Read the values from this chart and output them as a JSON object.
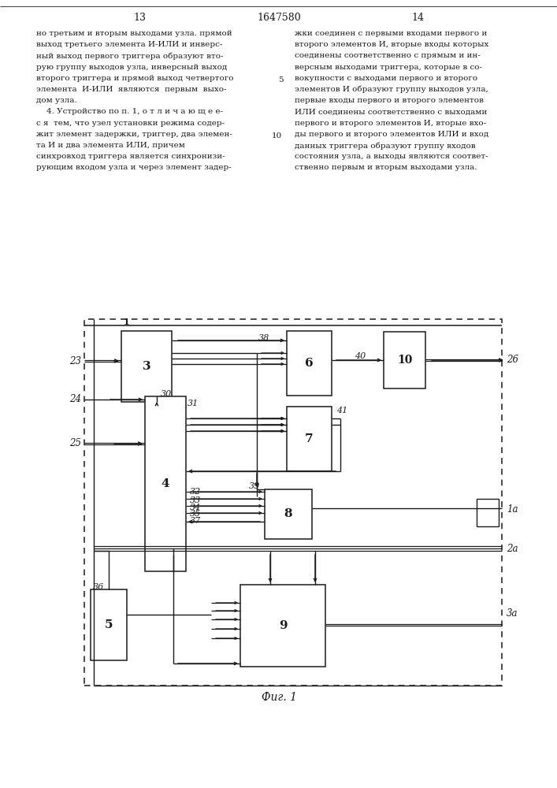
{
  "patent_number": "1647580",
  "page_left": "13",
  "page_right": "14",
  "caption": "Фиг. 1",
  "text_left_lines": [
    "но третьим и вторым выходами узла. прямой",
    "выход третьего элемента И-ИЛИ и инверс-",
    "ный выход первого триггера образуют вто-",
    "рую группу выходов узла, инверсный выход",
    "второго триггера и прямой выход четвертого",
    "элемента  И-ИЛИ  являются  первым  выхо-",
    "дом узла.",
    "    4. Устройство по п. 1, о т л и ч а ю щ е е-",
    "с я  тем, что узел установки режима содер-",
    "жит элемент задержки, триггер, два элемен-",
    "та И и два элемента ИЛИ, причем",
    "синхровход триггера является синхронизи-",
    "рующим входом узла и через элемент задер-"
  ],
  "text_right_lines": [
    "жки соединен с первыми входами первого и",
    "второго элементов И, вторые входы которых",
    "соединены соответственно с прямым и ин-",
    "версным выходами триггера, которые в со-",
    "вокупности с выходами первого и второго",
    "элементов И образуют группу выходов узла,",
    "первые входы первого и второго элементов",
    "ИЛИ соединены соответственно с выходами",
    "первого и второго элементов И, вторые вхо-",
    "ды первого и второго элементов ИЛИ и вход",
    "данных триггера образуют группу входов",
    "состояния узла, а выходы являются соответ-",
    "ственно первым и вторым выходами узла."
  ],
  "line5_row": 4,
  "line10_row": 9,
  "bg": "#ffffff",
  "lc": "#1a1a1a"
}
